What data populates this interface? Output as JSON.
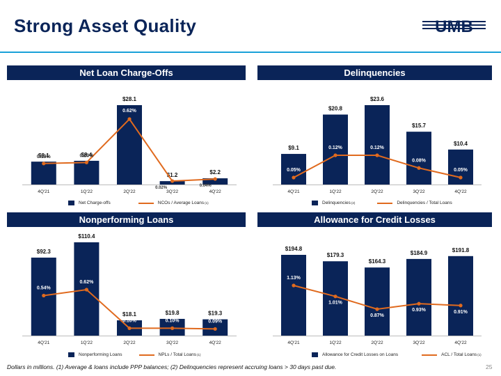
{
  "page": {
    "title": "Strong Asset Quality",
    "logo_text": "UMB",
    "footer": "Dollars in millions. (1) Average & loans include PPP balances; (2) Delinquencies represent accruing loans > 30 days past due.",
    "page_number": "25"
  },
  "colors": {
    "navy": "#0a2458",
    "orange": "#e06a1e",
    "rule": "#19a1d8"
  },
  "chart_data": [
    {
      "type": "bar",
      "title": "Net Loan Charge-Offs",
      "categories": [
        "4Q'21",
        "1Q'22",
        "2Q'22",
        "3Q'22",
        "4Q'22"
      ],
      "series": [
        {
          "name": "Net Charge-offs",
          "kind": "bar",
          "values": [
            8.1,
            8.4,
            28.1,
            1.2,
            2.2
          ],
          "labels": [
            "$8.1",
            "$8.4",
            "$28.1",
            "$1.2",
            "$2.2"
          ]
        },
        {
          "name": "NCOs / Average Loans",
          "superscript": "(1)",
          "kind": "line",
          "values": [
            0.19,
            0.2,
            0.62,
            0.02,
            0.04
          ],
          "labels": [
            "0.19%",
            "0.20%",
            "0.62%",
            "0.02%",
            "0.04%"
          ]
        }
      ],
      "ylim": [
        0,
        28.1
      ]
    },
    {
      "type": "bar",
      "title": "Delinquencies",
      "categories": [
        "4Q'21",
        "1Q'22",
        "2Q'22",
        "3Q'22",
        "4Q'22"
      ],
      "series": [
        {
          "name": "Delinquencies",
          "superscript": "(2)",
          "kind": "bar",
          "values": [
            9.1,
            20.8,
            23.6,
            15.7,
            10.4
          ],
          "labels": [
            "$9.1",
            "$20.8",
            "$23.6",
            "$15.7",
            "$10.4"
          ]
        },
        {
          "name": "Delinquencies / Total Loans",
          "kind": "line",
          "values": [
            0.05,
            0.12,
            0.12,
            0.08,
            0.05
          ],
          "labels": [
            "0.05%",
            "0.12%",
            "0.12%",
            "0.08%",
            "0.05%"
          ]
        }
      ],
      "ylim": [
        0,
        23.6
      ]
    },
    {
      "type": "bar",
      "title": "Nonperforming Loans",
      "categories": [
        "4Q'21",
        "1Q'22",
        "2Q'22",
        "3Q'22",
        "4Q'22"
      ],
      "series": [
        {
          "name": "Nonperforming Loans",
          "kind": "bar",
          "values": [
            92.3,
            110.4,
            18.1,
            19.8,
            19.3
          ],
          "labels": [
            "$92.3",
            "$110.4",
            "$18.1",
            "$19.8",
            "$19.3"
          ]
        },
        {
          "name": "NPLs / Total Loans",
          "superscript": "(1)",
          "kind": "line",
          "values": [
            0.54,
            0.62,
            0.1,
            0.1,
            0.09
          ],
          "labels": [
            "0.54%",
            "0.62%",
            "0.10%",
            "0.10%",
            "0.09%"
          ]
        }
      ],
      "ylim": [
        0,
        110.4
      ]
    },
    {
      "type": "bar",
      "title": "Allowance for Credit Losses",
      "categories": [
        "4Q'21",
        "1Q'22",
        "2Q'22",
        "3Q'22",
        "4Q'22"
      ],
      "series": [
        {
          "name": "Allowance for Credit Losses on Loans",
          "kind": "bar",
          "values": [
            194.8,
            179.3,
            164.3,
            184.9,
            191.8
          ],
          "labels": [
            "$194.8",
            "$179.3",
            "$164.3",
            "$184.9",
            "$191.8"
          ]
        },
        {
          "name": "ACL / Total Loans",
          "superscript": "(1)",
          "kind": "line",
          "values": [
            1.13,
            1.01,
            0.87,
            0.93,
            0.91
          ],
          "labels": [
            "1.13%",
            "1.01%",
            "0.87%",
            "0.93%",
            "0.91%"
          ]
        }
      ],
      "ylim": [
        0,
        194.8
      ]
    }
  ]
}
